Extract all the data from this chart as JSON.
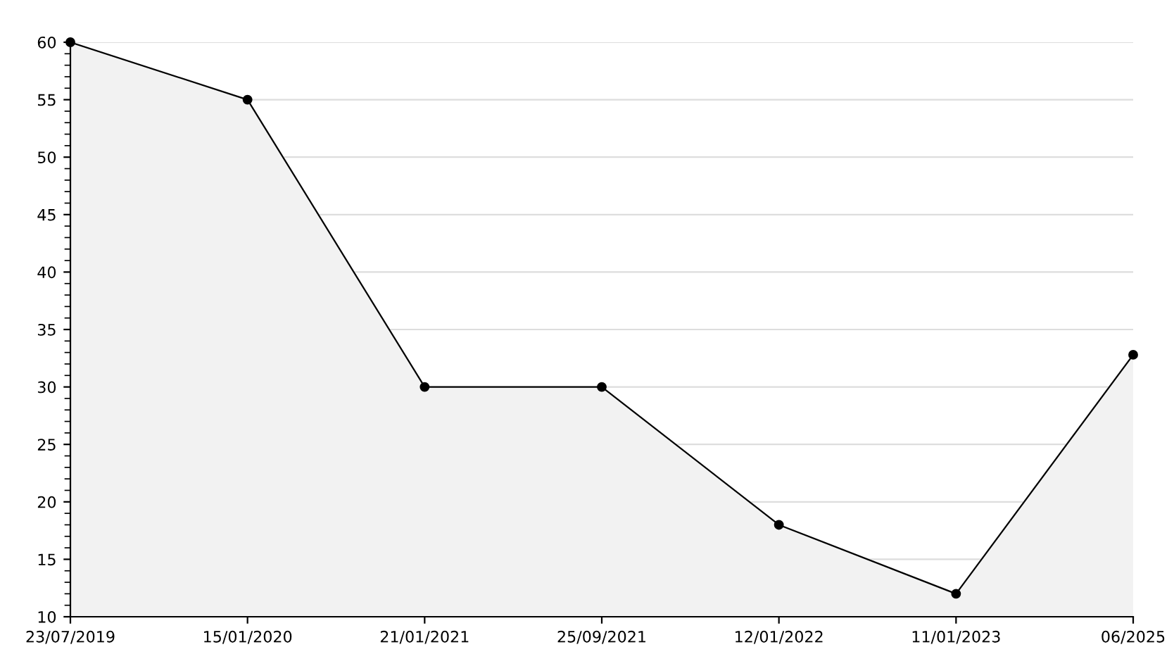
{
  "chart_data": {
    "type": "area",
    "categories": [
      "23/07/2019",
      "15/01/2020",
      "21/01/2021",
      "25/09/2021",
      "12/01/2022",
      "11/01/2023",
      "06/2025"
    ],
    "series": [
      {
        "color": "#000000",
        "values": [
          60,
          55,
          30,
          30,
          18,
          12,
          32.8
        ]
      }
    ],
    "ylim": [
      10,
      60
    ],
    "yticks": [
      10,
      15,
      20,
      25,
      30,
      35,
      40,
      45,
      50,
      55,
      60
    ],
    "grid": "y",
    "marker": "circle",
    "line_style": "solid"
  }
}
